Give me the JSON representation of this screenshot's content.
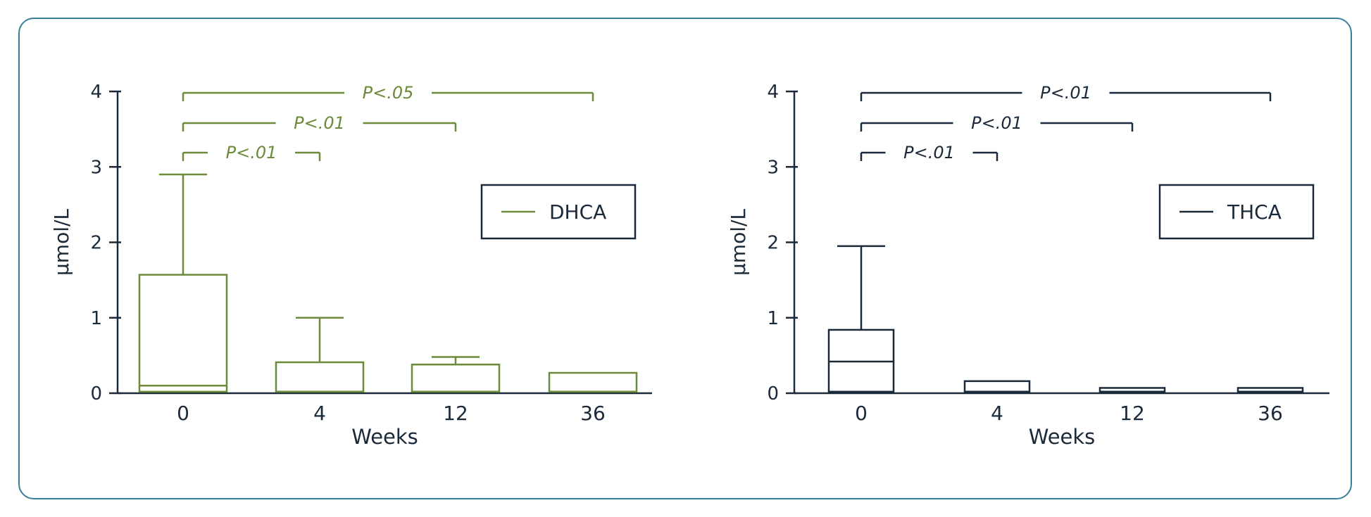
{
  "chart_data": [
    {
      "type": "box",
      "series_name": "DHCA",
      "legend": "DHCA",
      "legend_position": "top-right",
      "color": "#6b8a3a",
      "ylabel": "µmol/L",
      "xlabel": "Weeks",
      "ylim": [
        0,
        4
      ],
      "yticks": [
        "0",
        "1",
        "2",
        "3",
        "4"
      ],
      "categories": [
        "0",
        "4",
        "12",
        "36"
      ],
      "boxes": [
        {
          "whisker_low": 0.02,
          "q1": 0.02,
          "median": 0.1,
          "q3": 1.57,
          "whisker_high": 2.9
        },
        {
          "whisker_low": 0.02,
          "q1": 0.02,
          "median": 0.02,
          "q3": 0.41,
          "whisker_high": 1.0
        },
        {
          "whisker_low": 0.02,
          "q1": 0.02,
          "median": 0.02,
          "q3": 0.38,
          "whisker_high": 0.48
        },
        {
          "whisker_low": 0.02,
          "q1": 0.02,
          "median": 0.02,
          "q3": 0.27,
          "whisker_high": 0.27
        }
      ],
      "significance": [
        {
          "from": "0",
          "to": "36",
          "label": "P<.05"
        },
        {
          "from": "0",
          "to": "12",
          "label": "P<.01"
        },
        {
          "from": "0",
          "to": "4",
          "label": "P<.01"
        }
      ],
      "grid": false
    },
    {
      "type": "box",
      "series_name": "THCA",
      "legend": "THCA",
      "legend_position": "top-right",
      "color": "#1a2a3a",
      "ylabel": "µmol/L",
      "xlabel": "Weeks",
      "ylim": [
        0,
        4
      ],
      "yticks": [
        "0",
        "1",
        "2",
        "3",
        "4"
      ],
      "categories": [
        "0",
        "4",
        "12",
        "36"
      ],
      "boxes": [
        {
          "whisker_low": 0.02,
          "q1": 0.02,
          "median": 0.42,
          "q3": 0.84,
          "whisker_high": 1.95
        },
        {
          "whisker_low": 0.02,
          "q1": 0.02,
          "median": 0.02,
          "q3": 0.16,
          "whisker_high": 0.16
        },
        {
          "whisker_low": 0.02,
          "q1": 0.02,
          "median": 0.02,
          "q3": 0.07,
          "whisker_high": 0.07
        },
        {
          "whisker_low": 0.02,
          "q1": 0.02,
          "median": 0.02,
          "q3": 0.07,
          "whisker_high": 0.07
        }
      ],
      "significance": [
        {
          "from": "0",
          "to": "36",
          "label": "P<.01"
        },
        {
          "from": "0",
          "to": "12",
          "label": "P<.01"
        },
        {
          "from": "0",
          "to": "4",
          "label": "P<.01"
        }
      ],
      "grid": false
    }
  ],
  "axis_color": "#1a2a3a"
}
